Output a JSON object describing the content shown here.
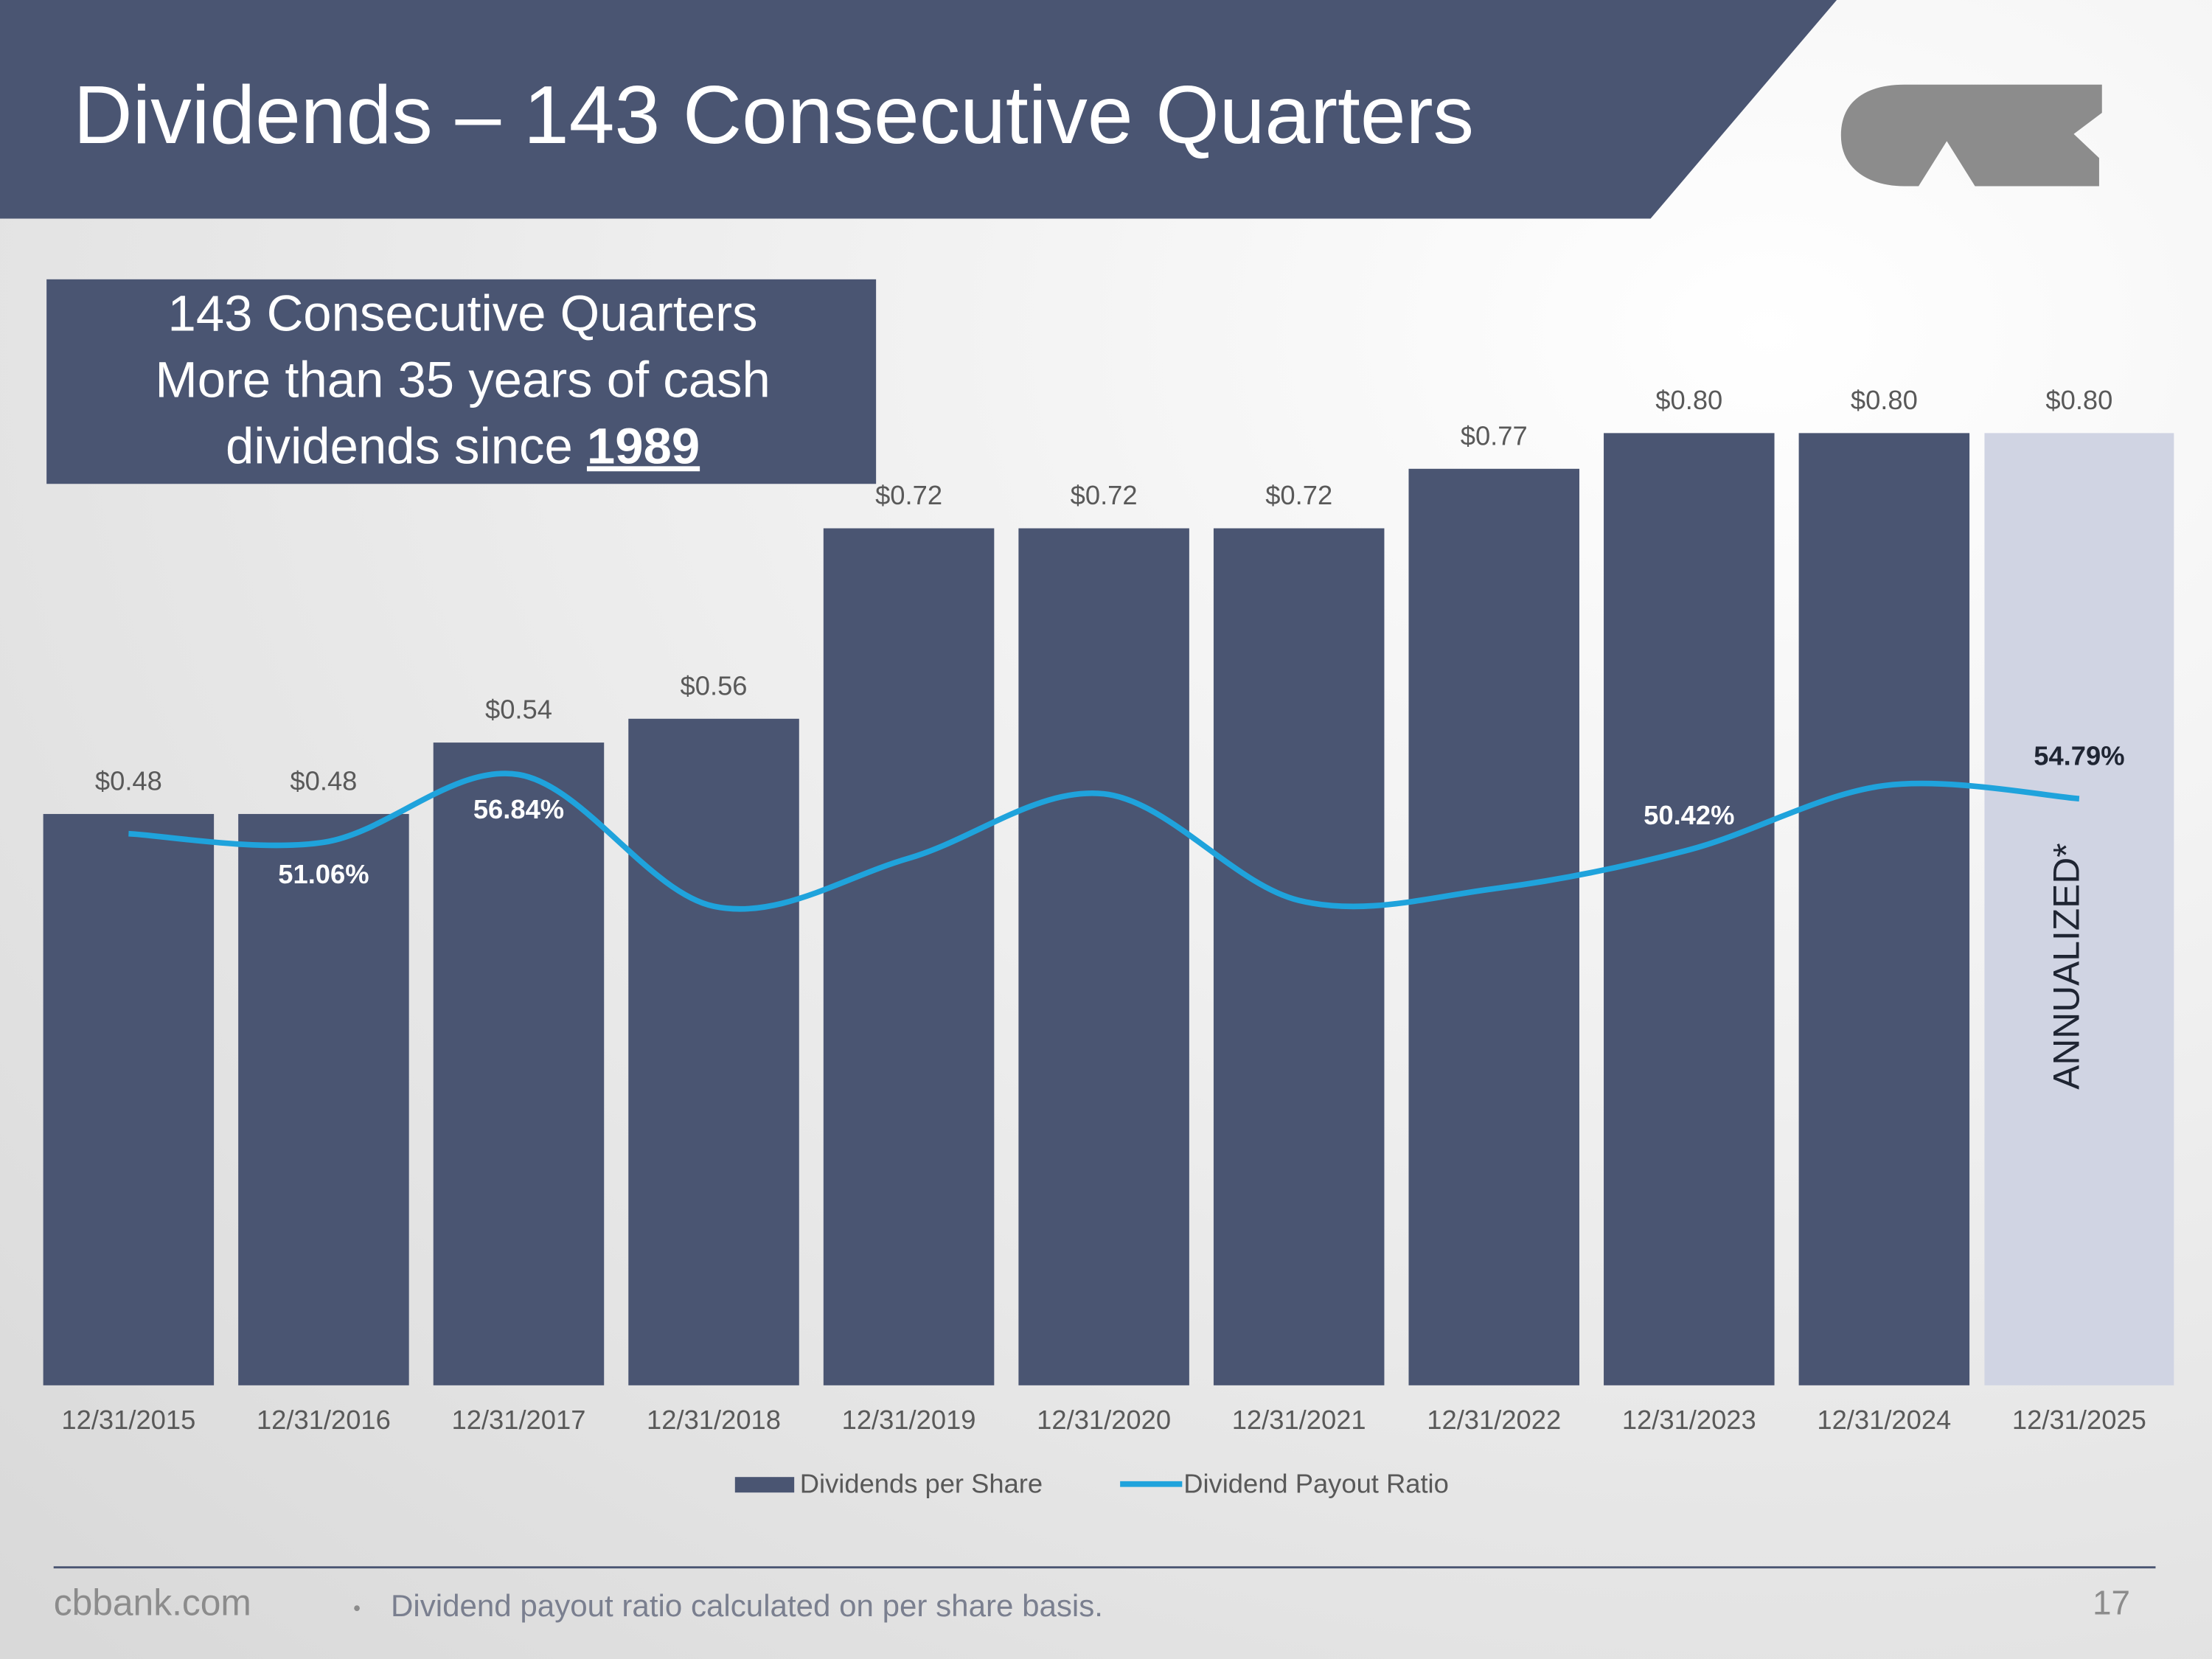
{
  "header": {
    "title": "Dividends – 143 Consecutive Quarters"
  },
  "callout": {
    "line1": "143 Consecutive Quarters",
    "line2": "More than 35 years of cash",
    "line3": "dividends since",
    "year": "1989"
  },
  "chart_data": {
    "type": "bar-line",
    "categories": [
      "12/31/2015",
      "12/31/2016",
      "12/31/2017",
      "12/31/2018",
      "12/31/2019",
      "12/31/2020",
      "12/31/2021",
      "12/31/2022",
      "12/31/2023",
      "12/31/2024",
      "12/31/2025"
    ],
    "series": [
      {
        "name": "Dividends per Share",
        "type": "bar",
        "color": "#4a5572",
        "colors": [
          "#4a5572",
          "#4a5572",
          "#4a5572",
          "#4a5572",
          "#4a5572",
          "#4a5572",
          "#4a5572",
          "#4a5572",
          "#4a5572",
          "#4a5572",
          "#d0d4e3"
        ],
        "values": [
          0.48,
          0.48,
          0.54,
          0.56,
          0.72,
          0.72,
          0.72,
          0.77,
          0.8,
          0.8,
          0.8
        ],
        "value_labels": [
          "$0.48",
          "$0.48",
          "$0.54",
          "$0.56",
          "$0.72",
          "$0.72",
          "$0.72",
          "$0.77",
          "$0.80",
          "$0.80",
          "$0.80"
        ]
      },
      {
        "name": "Dividend Payout Ratio",
        "type": "line",
        "axis": "y2",
        "color": "#1fa3dc",
        "values": [
          51.8,
          51.06,
          56.84,
          45.6,
          49.7,
          55.2,
          46.1,
          47.1,
          50.42,
          55.9,
          54.79
        ],
        "value_labels": [
          null,
          "51.06%",
          "56.84%",
          null,
          null,
          null,
          null,
          null,
          "50.42%",
          null,
          "54.79%"
        ]
      }
    ],
    "ylim": [
      0,
      0.8
    ],
    "y2lim": [
      4.7,
      86
    ],
    "annotation": "ANNUALIZED*",
    "legend": "bottom"
  },
  "footer": {
    "site": "cbbank.com",
    "note": "Dividend payout ratio calculated on per share basis.",
    "page": "17"
  }
}
